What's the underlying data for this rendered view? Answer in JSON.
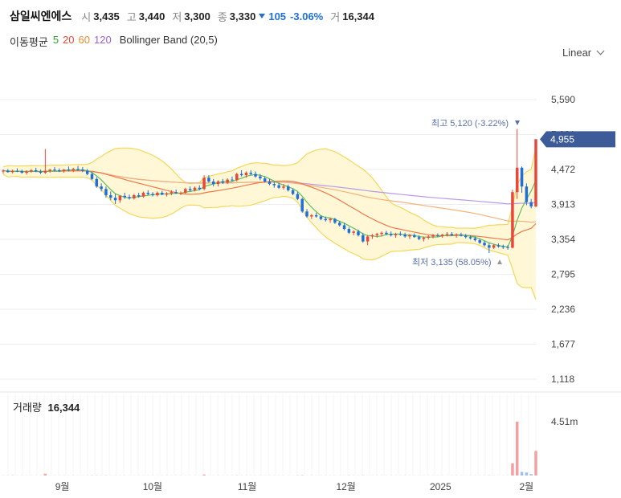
{
  "header": {
    "name": "삼일씨엔에스",
    "open_label": "시",
    "open": "3,435",
    "high_label": "고",
    "high": "3,440",
    "low_label": "저",
    "low": "3,300",
    "close_label": "종",
    "close": "3,330",
    "change": "105",
    "change_pct": "-3.06%",
    "volume_label": "거",
    "volume": "16,344"
  },
  "indicators": {
    "label": "이동평균",
    "ma": [
      {
        "text": "5",
        "color": "#2f9e2f"
      },
      {
        "text": "20",
        "color": "#e8473a"
      },
      {
        "text": "60",
        "color": "#f08c2a"
      },
      {
        "text": "120",
        "color": "#9a5fd6"
      }
    ],
    "bollinger": "Bollinger Band (20,5)"
  },
  "scale_label": "Linear",
  "price_axis": [
    "5,590",
    "5,031",
    "4,472",
    "3,913",
    "3,354",
    "2,795",
    "2,236",
    "1,677",
    "1,118"
  ],
  "current_price": "4,955",
  "volume_axis": "4.51m",
  "volume_title": "거래량",
  "volume_value": "16,344",
  "annotations": {
    "high_label": "최고",
    "high_value": "5,120 (-3.22%)",
    "low_label": "최저",
    "low_value": "3,135 (58.05%)"
  },
  "x_labels": [
    "9월",
    "10월",
    "11월",
    "12월",
    "2025",
    "2월"
  ],
  "colors": {
    "up": "#e8473a",
    "down": "#1f6fd9",
    "band_fill": "#fff7d6",
    "band_line": "#f5d75a",
    "price_tag": "#3d5a99"
  },
  "chart_data": {
    "type": "candlestick",
    "y_range": [
      1118,
      5590
    ],
    "x_labels": [
      "9월",
      "10월",
      "11월",
      "12월",
      "2025",
      "2월"
    ],
    "volume_max": "4.51m",
    "candles": [
      [
        4440,
        4475,
        4405,
        4455
      ],
      [
        4455,
        4480,
        4420,
        4430
      ],
      [
        4430,
        4470,
        4410,
        4450
      ],
      [
        4450,
        4490,
        4430,
        4445
      ],
      [
        4445,
        4470,
        4405,
        4420
      ],
      [
        4420,
        4460,
        4390,
        4440
      ],
      [
        4440,
        4480,
        4420,
        4460
      ],
      [
        4460,
        4500,
        4430,
        4440
      ],
      [
        4440,
        4470,
        4400,
        4420
      ],
      [
        4420,
        4800,
        4400,
        4450
      ],
      [
        4450,
        4480,
        4420,
        4470
      ],
      [
        4470,
        4510,
        4440,
        4460
      ],
      [
        4460,
        4490,
        4430,
        4445
      ],
      [
        4445,
        4480,
        4420,
        4470
      ],
      [
        4470,
        4520,
        4440,
        4460
      ],
      [
        4460,
        4500,
        4430,
        4480
      ],
      [
        4480,
        4530,
        4450,
        4470
      ],
      [
        4470,
        4510,
        4430,
        4450
      ],
      [
        4450,
        4480,
        4380,
        4400
      ],
      [
        4400,
        4430,
        4300,
        4320
      ],
      [
        4320,
        4350,
        4180,
        4200
      ],
      [
        4200,
        4250,
        4120,
        4160
      ],
      [
        4160,
        4200,
        4020,
        4060
      ],
      [
        4060,
        4120,
        3980,
        4020
      ],
      [
        4020,
        4080,
        3920,
        3980
      ],
      [
        3980,
        4060,
        3940,
        4050
      ],
      [
        4050,
        4100,
        4000,
        4030
      ],
      [
        4030,
        4070,
        3990,
        4010
      ],
      [
        4010,
        4080,
        3990,
        4060
      ],
      [
        4060,
        4100,
        4020,
        4040
      ],
      [
        4040,
        4120,
        4020,
        4100
      ],
      [
        4100,
        4140,
        4060,
        4080
      ],
      [
        4080,
        4110,
        4040,
        4060
      ],
      [
        4060,
        4120,
        4040,
        4100
      ],
      [
        4100,
        4130,
        4060,
        4070
      ],
      [
        4070,
        4110,
        4040,
        4090
      ],
      [
        4090,
        4140,
        4060,
        4110
      ],
      [
        4110,
        4150,
        4080,
        4090
      ],
      [
        4090,
        4120,
        4060,
        4100
      ],
      [
        4100,
        4180,
        4080,
        4160
      ],
      [
        4160,
        4200,
        4120,
        4140
      ],
      [
        4140,
        4200,
        4120,
        4180
      ],
      [
        4180,
        4220,
        4140,
        4160
      ],
      [
        4160,
        4380,
        4140,
        4340
      ],
      [
        4340,
        4380,
        4260,
        4280
      ],
      [
        4280,
        4320,
        4200,
        4240
      ],
      [
        4240,
        4300,
        4200,
        4280
      ],
      [
        4280,
        4320,
        4240,
        4260
      ],
      [
        4260,
        4330,
        4240,
        4310
      ],
      [
        4310,
        4360,
        4280,
        4300
      ],
      [
        4300,
        4420,
        4280,
        4400
      ],
      [
        4400,
        4460,
        4360,
        4380
      ],
      [
        4380,
        4440,
        4340,
        4420
      ],
      [
        4420,
        4460,
        4380,
        4400
      ],
      [
        4400,
        4440,
        4340,
        4360
      ],
      [
        4360,
        4400,
        4300,
        4330
      ],
      [
        4330,
        4360,
        4260,
        4280
      ],
      [
        4280,
        4320,
        4220,
        4240
      ],
      [
        4240,
        4280,
        4180,
        4220
      ],
      [
        4220,
        4260,
        4160,
        4180
      ],
      [
        4180,
        4240,
        4150,
        4200
      ],
      [
        4200,
        4230,
        4120,
        4140
      ],
      [
        4140,
        4170,
        4060,
        4080
      ],
      [
        4080,
        4110,
        3980,
        4000
      ],
      [
        4000,
        4020,
        3780,
        3800
      ],
      [
        3800,
        3840,
        3700,
        3720
      ],
      [
        3720,
        3760,
        3680,
        3740
      ],
      [
        3740,
        3780,
        3700,
        3720
      ],
      [
        3720,
        3740,
        3660,
        3680
      ],
      [
        3680,
        3720,
        3640,
        3660
      ],
      [
        3660,
        3700,
        3620,
        3680
      ],
      [
        3680,
        3700,
        3600,
        3620
      ],
      [
        3620,
        3650,
        3560,
        3580
      ],
      [
        3580,
        3620,
        3500,
        3520
      ],
      [
        3520,
        3550,
        3440,
        3460
      ],
      [
        3460,
        3500,
        3420,
        3480
      ],
      [
        3480,
        3510,
        3400,
        3420
      ],
      [
        3420,
        3460,
        3300,
        3320
      ],
      [
        3320,
        3420,
        3260,
        3400
      ],
      [
        3400,
        3440,
        3360,
        3420
      ],
      [
        3420,
        3460,
        3380,
        3440
      ],
      [
        3440,
        3480,
        3400,
        3460
      ],
      [
        3460,
        3490,
        3420,
        3440
      ],
      [
        3440,
        3480,
        3400,
        3420
      ],
      [
        3420,
        3460,
        3380,
        3440
      ],
      [
        3440,
        3480,
        3410,
        3430
      ],
      [
        3430,
        3460,
        3380,
        3400
      ],
      [
        3400,
        3440,
        3360,
        3420
      ],
      [
        3420,
        3450,
        3380,
        3390
      ],
      [
        3390,
        3420,
        3340,
        3360
      ],
      [
        3360,
        3400,
        3320,
        3380
      ],
      [
        3380,
        3420,
        3350,
        3400
      ],
      [
        3400,
        3440,
        3370,
        3420
      ],
      [
        3420,
        3450,
        3390,
        3410
      ],
      [
        3410,
        3440,
        3380,
        3430
      ],
      [
        3430,
        3470,
        3400,
        3440
      ],
      [
        3440,
        3470,
        3410,
        3420
      ],
      [
        3420,
        3450,
        3380,
        3430
      ],
      [
        3430,
        3460,
        3400,
        3410
      ],
      [
        3410,
        3440,
        3370,
        3390
      ],
      [
        3390,
        3420,
        3350,
        3370
      ],
      [
        3370,
        3400,
        3320,
        3340
      ],
      [
        3340,
        3370,
        3280,
        3300
      ],
      [
        3300,
        3330,
        3240,
        3260
      ],
      [
        3260,
        3290,
        3135,
        3220
      ],
      [
        3220,
        3280,
        3200,
        3260
      ],
      [
        3260,
        3290,
        3220,
        3240
      ],
      [
        3240,
        3270,
        3200,
        3230
      ],
      [
        3230,
        3260,
        3190,
        3220
      ],
      [
        3220,
        4150,
        3210,
        4110
      ],
      [
        4110,
        5120,
        4000,
        4500
      ],
      [
        4500,
        4520,
        4100,
        4200
      ],
      [
        4200,
        4250,
        3900,
        3950
      ],
      [
        3950,
        4000,
        3850,
        3880
      ],
      [
        3880,
        4960,
        3870,
        4955
      ]
    ],
    "volumes": [
      0.01,
      0.01,
      0.02,
      0.01,
      0.01,
      0.01,
      0.01,
      0.01,
      0.01,
      0.15,
      0.01,
      0.01,
      0.01,
      0.01,
      0.01,
      0.01,
      0.01,
      0.01,
      0.01,
      0.02,
      0.02,
      0.01,
      0.02,
      0.01,
      0.01,
      0.01,
      0.01,
      0.01,
      0.01,
      0.01,
      0.01,
      0.01,
      0.01,
      0.01,
      0.01,
      0.01,
      0.01,
      0.01,
      0.01,
      0.01,
      0.01,
      0.01,
      0.01,
      0.08,
      0.01,
      0.01,
      0.01,
      0.01,
      0.01,
      0.01,
      0.02,
      0.01,
      0.01,
      0.01,
      0.01,
      0.01,
      0.01,
      0.01,
      0.01,
      0.01,
      0.01,
      0.01,
      0.01,
      0.02,
      0.03,
      0.01,
      0.01,
      0.01,
      0.01,
      0.01,
      0.01,
      0.01,
      0.01,
      0.01,
      0.02,
      0.01,
      0.01,
      0.02,
      0.01,
      0.01,
      0.01,
      0.01,
      0.01,
      0.01,
      0.01,
      0.01,
      0.01,
      0.01,
      0.01,
      0.01,
      0.01,
      0.01,
      0.01,
      0.01,
      0.01,
      0.01,
      0.01,
      0.01,
      0.01,
      0.01,
      0.01,
      0.01,
      0.01,
      0.01,
      0.02,
      0.01,
      0.01,
      0.01,
      0.01,
      1.02,
      4.51,
      0.3,
      0.25,
      0.12,
      2.06
    ]
  }
}
